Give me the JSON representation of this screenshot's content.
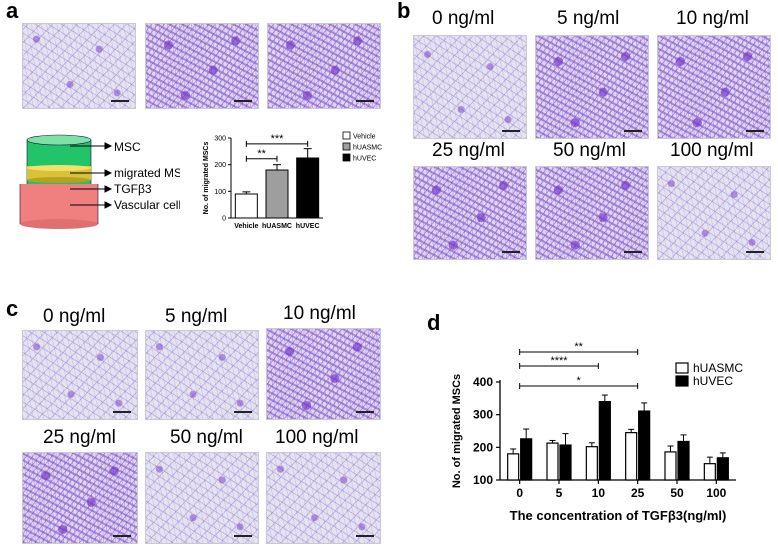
{
  "panels": {
    "a": "a",
    "b": "b",
    "c": "c",
    "d": "d"
  },
  "concentrations": [
    "0 ng/ml",
    "5 ng/ml",
    "10 ng/ml",
    "25 ng/ml",
    "50 ng/ml",
    "100 ng/ml"
  ],
  "diagram": {
    "labels": [
      "MSC",
      "migrated MSC",
      "TGFβ3",
      "Vascular cell"
    ],
    "colors": {
      "top": "#22c46a",
      "membrane": "#d8c238",
      "bottom": "#f08080"
    }
  },
  "chart_data": [
    {
      "type": "bar",
      "panel": "a",
      "categories": [
        "Vehicle",
        "hUASMC",
        "hUVEC"
      ],
      "values": [
        90,
        180,
        225
      ],
      "errors": [
        8,
        20,
        35
      ],
      "ylabel": "No. of migrated MSCs",
      "ylim": [
        0,
        300
      ],
      "yticks": [
        "0",
        "100",
        "200",
        "300"
      ],
      "legend": [
        "Vehicle",
        "hUASMC",
        "hUVEC"
      ],
      "legend_position": "right",
      "colors": [
        "#ffffff",
        "#9e9e9e",
        "#000000"
      ],
      "significance": [
        "**",
        "***"
      ]
    },
    {
      "type": "bar",
      "panel": "d",
      "categories": [
        "0",
        "5",
        "10",
        "25",
        "50",
        "100"
      ],
      "series": [
        {
          "name": "hUASMC",
          "values": [
            180,
            213,
            202,
            245,
            186,
            150
          ],
          "errors": [
            15,
            8,
            12,
            10,
            18,
            20
          ],
          "color": "#ffffff"
        },
        {
          "name": "hUVEC",
          "values": [
            226,
            207,
            340,
            311,
            218,
            168
          ],
          "errors": [
            30,
            35,
            20,
            25,
            20,
            15
          ],
          "color": "#000000"
        }
      ],
      "xlabel": "The concentration of TGFβ3(ng/ml)",
      "ylabel": "No. of migrated MSCs",
      "ylim": [
        100,
        400
      ],
      "yticks": [
        "100",
        "200",
        "300",
        "400"
      ],
      "legend_position": "top-right",
      "significance": [
        "**",
        "****",
        "*"
      ]
    }
  ]
}
